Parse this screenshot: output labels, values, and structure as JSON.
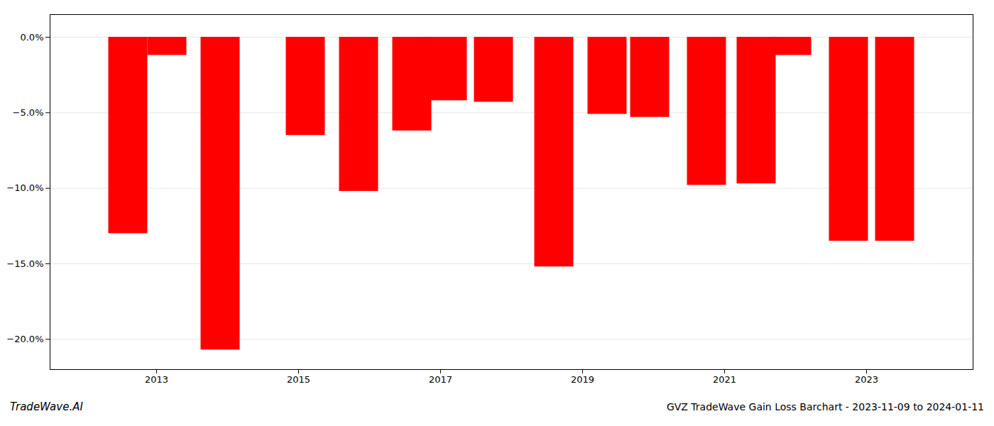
{
  "chart_data": {
    "type": "bar",
    "title": "GVZ TradeWave Gain Loss Barchart - 2023-11-09 to 2024-01-11",
    "annotations": [
      "TradeWave.AI"
    ],
    "x": [
      2012.6,
      2013.15,
      2013.9,
      2015.1,
      2015.85,
      2016.6,
      2017.1,
      2017.75,
      2018.6,
      2019.35,
      2019.95,
      2020.75,
      2021.45,
      2021.95,
      2022.75,
      2023.4
    ],
    "values": [
      -13.0,
      -1.2,
      -20.7,
      -6.5,
      -10.2,
      -6.2,
      -4.2,
      -4.3,
      -15.2,
      -5.1,
      -5.3,
      -9.8,
      -9.7,
      -1.2,
      -13.5,
      -13.5
    ],
    "color": "#ff0000",
    "xlim": [
      2011.5,
      2024.5
    ],
    "xticks": [
      2013,
      2015,
      2017,
      2019,
      2021,
      2023
    ],
    "ylim": [
      -22,
      1.5
    ],
    "yticks": [
      {
        "value": 0.0,
        "label": "0.0%"
      },
      {
        "value": -5.0,
        "label": "−5.0%"
      },
      {
        "value": -10.0,
        "label": "−10.0%"
      },
      {
        "value": -15.0,
        "label": "−15.0%"
      },
      {
        "value": -20.0,
        "label": "−20.0%"
      }
    ],
    "grid": true
  }
}
